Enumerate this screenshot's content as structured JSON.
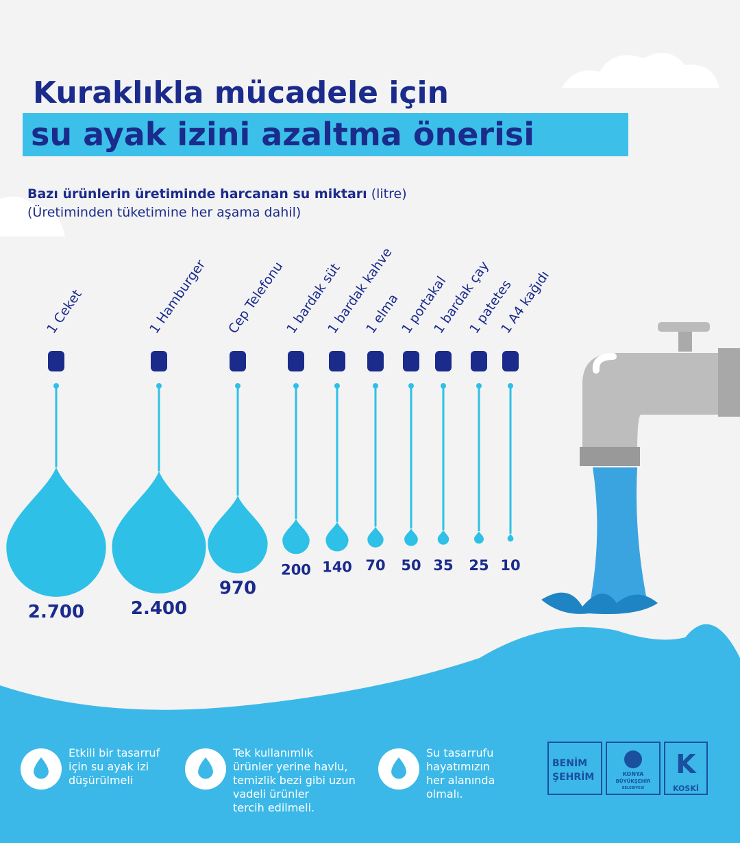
{
  "chart_data": {
    "type": "drop",
    "title_line1": "Kuraklıkla mücadele için",
    "title_line2": "su ayak izini azaltma önerisi",
    "subtitle": "Bazı ürünlerin üretiminde harcanan su miktarı",
    "unit": "(litre)",
    "note": "(Üretiminden tüketimine her aşama dahil)",
    "categories": [
      "1 Ceket",
      "1 Hamburger",
      "Cep Telefonu",
      "1 bardak süt",
      "1 bardak kahve",
      "1 elma",
      "1 portakal",
      "1 bardak çay",
      "1 patetes",
      "1 A4 kağıdı"
    ],
    "values": [
      2700,
      2400,
      970,
      200,
      140,
      70,
      50,
      35,
      25,
      10
    ],
    "value_labels": [
      "2.700",
      "2.400",
      "970",
      "200",
      "140",
      "70",
      "50",
      "35",
      "25",
      "10"
    ],
    "color": "#2ec0e6"
  },
  "tips": [
    [
      "Etkili bir tasarruf",
      "için su ayak izi",
      "düşürülmeli"
    ],
    [
      "Tek kullanımlık",
      "ürünler yerine havlu,",
      "temizlik bezi gibi uzun",
      "vadeli ürünler",
      "tercih edilmeli."
    ],
    [
      "Su tasarrufu",
      "hayatımızın",
      "her alanında",
      "olmalı."
    ]
  ],
  "logos": {
    "benim": [
      "BENİM",
      "ŞEHRİM"
    ],
    "konya": [
      "KONYA",
      "BÜYÜKŞEHİR",
      "BELEDİYESİ"
    ],
    "koski": "KOSKİ"
  }
}
